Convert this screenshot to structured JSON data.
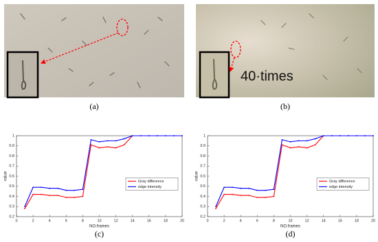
{
  "images": [
    {
      "panel_label": "(a)"
    },
    {
      "panel_label": "(b)",
      "annotation": "40·times"
    }
  ],
  "chart_data": [
    {
      "type": "line",
      "panel_label": "(c)",
      "x_label": "NO.frames",
      "y_label": "value",
      "x": [
        1,
        2,
        3,
        4,
        5,
        6,
        7,
        8,
        9,
        10,
        11,
        12,
        13,
        14,
        15,
        16,
        17,
        18,
        19,
        20
      ],
      "series": [
        {
          "name": "Gray difference",
          "color": "#ff0000",
          "values": [
            0.28,
            0.42,
            0.42,
            0.41,
            0.41,
            0.39,
            0.39,
            0.4,
            0.91,
            0.88,
            0.89,
            0.88,
            0.91,
            1,
            1,
            1,
            1,
            1,
            1,
            1
          ]
        },
        {
          "name": "edge intensity",
          "color": "#0000ff",
          "values": [
            0.3,
            0.49,
            0.49,
            0.48,
            0.48,
            0.46,
            0.46,
            0.47,
            0.96,
            0.94,
            0.95,
            0.95,
            0.97,
            1,
            1,
            1,
            1,
            1,
            1,
            1
          ]
        }
      ],
      "xlim": [
        0,
        20
      ],
      "xticks": [
        0,
        2,
        4,
        6,
        8,
        10,
        12,
        14,
        16,
        18,
        20
      ],
      "ylim": [
        0.2,
        1
      ],
      "yticks": [
        0.2,
        0.3,
        0.4,
        0.5,
        0.6,
        0.7,
        0.8,
        0.9,
        1
      ],
      "legend": "right",
      "grid": false
    },
    {
      "type": "line",
      "panel_label": "(d)",
      "x_label": "NO.frames",
      "y_label": "value",
      "x": [
        1,
        2,
        3,
        4,
        5,
        6,
        7,
        8,
        9,
        10,
        11,
        12,
        13,
        14,
        15,
        16,
        17,
        18,
        19,
        20
      ],
      "series": [
        {
          "name": "Gray difference",
          "color": "#ff0000",
          "values": [
            0.28,
            0.42,
            0.42,
            0.41,
            0.41,
            0.39,
            0.39,
            0.4,
            0.91,
            0.88,
            0.89,
            0.88,
            0.91,
            1,
            1,
            1,
            1,
            1,
            1,
            1
          ]
        },
        {
          "name": "edge intensity",
          "color": "#0000ff",
          "values": [
            0.3,
            0.49,
            0.49,
            0.48,
            0.48,
            0.46,
            0.46,
            0.47,
            0.96,
            0.94,
            0.95,
            0.95,
            0.97,
            1,
            1,
            1,
            1,
            1,
            1,
            1
          ]
        }
      ],
      "xlim": [
        0,
        20
      ],
      "xticks": [
        0,
        2,
        4,
        6,
        8,
        10,
        12,
        14,
        16,
        18,
        20
      ],
      "ylim": [
        0.2,
        1
      ],
      "yticks": [
        0.2,
        0.3,
        0.4,
        0.5,
        0.6,
        0.7,
        0.8,
        0.9,
        1
      ],
      "legend": "right",
      "grid": false
    }
  ]
}
